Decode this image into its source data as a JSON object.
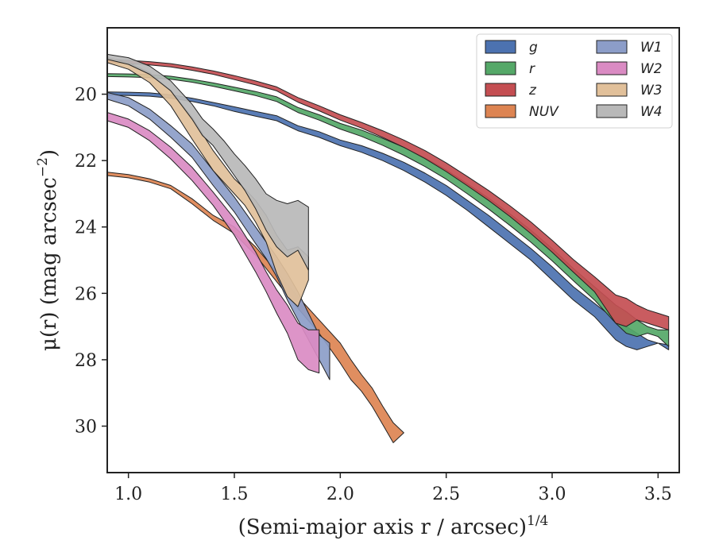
{
  "chart_data": {
    "type": "area",
    "xlabel": "(Semi-major axis r / arcsec)",
    "xlabel_sup": "1/4",
    "ylabel": "μ(r) (mag arcsec",
    "ylabel_sup": "−2",
    "xlim": [
      0.9,
      3.6
    ],
    "ylim": [
      31.4,
      18.0
    ],
    "y_inverted": true,
    "grid": false,
    "legend_position": "upper-right",
    "xticks": [
      {
        "value": 1.0,
        "label": "1.0"
      },
      {
        "value": 1.5,
        "label": "1.5"
      },
      {
        "value": 2.0,
        "label": "2.0"
      },
      {
        "value": 2.5,
        "label": "2.5"
      },
      {
        "value": 3.0,
        "label": "3.0"
      },
      {
        "value": 3.5,
        "label": "3.5"
      }
    ],
    "yticks": [
      {
        "value": 20,
        "label": "20"
      },
      {
        "value": 22,
        "label": "22"
      },
      {
        "value": 24,
        "label": "24"
      },
      {
        "value": 26,
        "label": "26"
      },
      {
        "value": 28,
        "label": "28"
      },
      {
        "value": 30,
        "label": "30"
      }
    ],
    "series": [
      {
        "name": "g",
        "color": "#4c72b0",
        "x": [
          0.9,
          1.0,
          1.1,
          1.2,
          1.3,
          1.4,
          1.5,
          1.6,
          1.7,
          1.8,
          1.9,
          2.0,
          2.1,
          2.2,
          2.3,
          2.4,
          2.5,
          2.6,
          2.7,
          2.8,
          2.9,
          3.0,
          3.1,
          3.2,
          3.3,
          3.35,
          3.4,
          3.45,
          3.5,
          3.55
        ],
        "lower": [
          19.93,
          19.94,
          19.96,
          20.02,
          20.12,
          20.25,
          20.38,
          20.52,
          20.65,
          20.95,
          21.13,
          21.38,
          21.55,
          21.78,
          22.05,
          22.38,
          22.75,
          23.2,
          23.65,
          24.15,
          24.65,
          25.2,
          25.8,
          26.3,
          26.8,
          27.0,
          27.2,
          27.4,
          27.5,
          27.55
        ],
        "upper": [
          20.03,
          20.04,
          20.06,
          20.12,
          20.22,
          20.35,
          20.52,
          20.66,
          20.8,
          21.1,
          21.3,
          21.55,
          21.75,
          22.0,
          22.3,
          22.65,
          23.05,
          23.5,
          24.0,
          24.5,
          25.0,
          25.6,
          26.2,
          26.7,
          27.4,
          27.6,
          27.7,
          27.6,
          27.5,
          27.7
        ]
      },
      {
        "name": "r",
        "color": "#55a868",
        "x": [
          0.9,
          1.0,
          1.1,
          1.2,
          1.3,
          1.4,
          1.5,
          1.6,
          1.7,
          1.8,
          1.9,
          2.0,
          2.1,
          2.2,
          2.3,
          2.4,
          2.5,
          2.6,
          2.7,
          2.8,
          2.9,
          3.0,
          3.1,
          3.2,
          3.3,
          3.35,
          3.4,
          3.45,
          3.5,
          3.55
        ],
        "lower": [
          19.38,
          19.39,
          19.41,
          19.46,
          19.55,
          19.66,
          19.79,
          19.92,
          20.08,
          20.4,
          20.62,
          20.88,
          21.08,
          21.33,
          21.6,
          21.92,
          22.28,
          22.7,
          23.13,
          23.6,
          24.1,
          24.65,
          25.25,
          25.8,
          26.35,
          26.55,
          26.8,
          27.0,
          27.1,
          27.1
        ],
        "upper": [
          19.47,
          19.48,
          19.5,
          19.55,
          19.64,
          19.76,
          19.9,
          20.04,
          20.22,
          20.55,
          20.78,
          21.05,
          21.27,
          21.54,
          21.84,
          22.18,
          22.56,
          23.0,
          23.46,
          23.95,
          24.46,
          25.02,
          25.62,
          26.2,
          26.9,
          27.2,
          27.3,
          27.2,
          27.3,
          27.6
        ]
      },
      {
        "name": "z",
        "color": "#c44e52",
        "x": [
          0.9,
          1.0,
          1.1,
          1.2,
          1.3,
          1.4,
          1.5,
          1.6,
          1.7,
          1.8,
          1.9,
          2.0,
          2.1,
          2.2,
          2.3,
          2.4,
          2.5,
          2.6,
          2.7,
          2.8,
          2.9,
          3.0,
          3.1,
          3.2,
          3.3,
          3.35,
          3.4,
          3.45,
          3.5,
          3.55
        ],
        "lower": [
          18.95,
          18.98,
          19.02,
          19.08,
          19.18,
          19.3,
          19.44,
          19.6,
          19.78,
          20.1,
          20.35,
          20.62,
          20.85,
          21.1,
          21.38,
          21.7,
          22.07,
          22.48,
          22.9,
          23.36,
          23.85,
          24.4,
          24.98,
          25.5,
          26.05,
          26.15,
          26.35,
          26.5,
          26.6,
          26.7
        ],
        "upper": [
          19.05,
          19.08,
          19.12,
          19.18,
          19.28,
          19.4,
          19.56,
          19.72,
          19.9,
          20.24,
          20.5,
          20.78,
          21.02,
          21.3,
          21.6,
          21.94,
          22.33,
          22.76,
          23.2,
          23.68,
          24.2,
          24.76,
          25.36,
          25.95,
          26.9,
          27.0,
          26.8,
          26.9,
          27.0,
          27.1
        ]
      },
      {
        "name": "NUV",
        "color": "#dd8452",
        "x": [
          0.9,
          1.0,
          1.1,
          1.2,
          1.3,
          1.4,
          1.5,
          1.6,
          1.7,
          1.8,
          1.9,
          2.0,
          2.05,
          2.1,
          2.15,
          2.2,
          2.25,
          2.3
        ],
        "lower": [
          22.35,
          22.42,
          22.55,
          22.75,
          23.15,
          23.65,
          24.0,
          24.6,
          25.35,
          26.1,
          26.8,
          27.5,
          28.0,
          28.45,
          28.85,
          29.4,
          29.9,
          30.2
        ],
        "upper": [
          22.45,
          22.52,
          22.65,
          22.85,
          23.3,
          23.8,
          24.2,
          24.85,
          25.65,
          26.45,
          27.2,
          28.1,
          28.6,
          28.95,
          29.4,
          29.95,
          30.5,
          30.2
        ]
      },
      {
        "name": "W1",
        "color": "#8c9dc8",
        "x": [
          0.9,
          1.0,
          1.1,
          1.2,
          1.3,
          1.4,
          1.5,
          1.6,
          1.65,
          1.7,
          1.75,
          1.8,
          1.85,
          1.9,
          1.95
        ],
        "lower": [
          19.95,
          20.1,
          20.45,
          20.95,
          21.5,
          22.3,
          23.1,
          24.0,
          24.45,
          24.9,
          25.4,
          25.95,
          26.6,
          27.25,
          27.5
        ],
        "upper": [
          20.15,
          20.35,
          20.75,
          21.3,
          21.9,
          22.75,
          23.55,
          24.5,
          24.95,
          25.5,
          26.2,
          26.8,
          27.4,
          28.0,
          28.6
        ]
      },
      {
        "name": "W2",
        "color": "#da8bc3",
        "x": [
          0.9,
          1.0,
          1.1,
          1.2,
          1.3,
          1.4,
          1.5,
          1.6,
          1.65,
          1.7,
          1.75,
          1.8,
          1.85,
          1.9
        ],
        "lower": [
          20.55,
          20.75,
          21.1,
          21.6,
          22.2,
          22.95,
          23.75,
          24.75,
          25.35,
          25.9,
          26.35,
          26.9,
          27.1,
          27.1
        ],
        "upper": [
          20.8,
          21.0,
          21.4,
          21.95,
          22.6,
          23.35,
          24.25,
          25.35,
          25.95,
          26.6,
          27.2,
          28.0,
          28.3,
          28.4
        ]
      },
      {
        "name": "W3",
        "color": "#e1c09a",
        "x": [
          0.9,
          1.0,
          1.1,
          1.2,
          1.3,
          1.4,
          1.5,
          1.55,
          1.6,
          1.65,
          1.7,
          1.75,
          1.8,
          1.85
        ],
        "lower": [
          18.9,
          19.05,
          19.35,
          19.9,
          20.7,
          21.7,
          22.55,
          22.85,
          23.2,
          23.65,
          24.25,
          24.7,
          24.6,
          24.9
        ],
        "upper": [
          19.05,
          19.25,
          19.65,
          20.35,
          21.35,
          22.3,
          23.0,
          23.35,
          23.85,
          24.45,
          25.4,
          26.1,
          26.4,
          25.6
        ]
      },
      {
        "name": "W4",
        "color": "#b8b8b8",
        "x": [
          0.9,
          1.0,
          1.1,
          1.2,
          1.3,
          1.35,
          1.4,
          1.45,
          1.5,
          1.55,
          1.6,
          1.65,
          1.7,
          1.75,
          1.8,
          1.85
        ],
        "lower": [
          18.8,
          18.9,
          19.15,
          19.6,
          20.3,
          20.75,
          21.05,
          21.4,
          21.8,
          22.15,
          22.55,
          23.0,
          23.2,
          23.3,
          23.2,
          23.4
        ],
        "upper": [
          18.95,
          19.1,
          19.4,
          19.9,
          20.75,
          21.25,
          21.55,
          22.0,
          22.45,
          22.9,
          23.45,
          24.1,
          24.6,
          24.9,
          24.7,
          25.3
        ]
      }
    ]
  }
}
